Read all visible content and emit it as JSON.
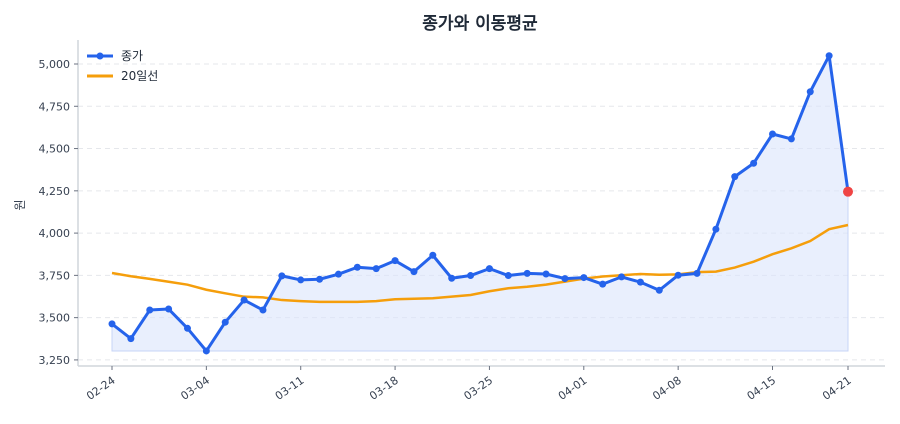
{
  "chart_data": {
    "type": "line",
    "title": "종가와 이동평균",
    "xlabel": "",
    "ylabel": "원",
    "ylim": [
      3214,
      5142
    ],
    "yticks": [
      3250,
      3500,
      3750,
      4000,
      4250,
      4500,
      4750,
      5000
    ],
    "ytick_labels": [
      "3,250",
      "3,500",
      "3,750",
      "4,000",
      "4,250",
      "4,500",
      "4,750",
      "5,000"
    ],
    "grid": true,
    "legend_position": "top-left",
    "x": [
      "02-24",
      "02-25",
      "02-26",
      "02-27",
      "02-28",
      "03-04",
      "03-05",
      "03-06",
      "03-07",
      "03-10",
      "03-11",
      "03-12",
      "03-13",
      "03-14",
      "03-17",
      "03-18",
      "03-19",
      "03-20",
      "03-21",
      "03-24",
      "03-25",
      "03-26",
      "03-27",
      "03-28",
      "03-31",
      "04-01",
      "04-02",
      "04-03",
      "04-04",
      "04-07",
      "04-08",
      "04-09",
      "04-10",
      "04-11",
      "04-14",
      "04-15",
      "04-16",
      "04-17",
      "04-18",
      "04-21"
    ],
    "xtick_labels": [
      "02-24",
      "03-04",
      "03-11",
      "03-18",
      "03-25",
      "04-01",
      "04-08",
      "04-15",
      "04-21"
    ],
    "series": [
      {
        "name": "종가",
        "color": "#2563eb",
        "values": [
          3463,
          3376,
          3545,
          3551,
          3437,
          3303,
          3473,
          3604,
          3545,
          3747,
          3723,
          3727,
          3757,
          3798,
          3790,
          3837,
          3772,
          3869,
          3733,
          3749,
          3790,
          3749,
          3762,
          3758,
          3731,
          3737,
          3698,
          3741,
          3710,
          3662,
          3751,
          3762,
          4023,
          4334,
          4413,
          4586,
          4557,
          4836,
          5049,
          4245
        ]
      },
      {
        "name": "20일선",
        "color": "#f59e0b",
        "values": [
          3764,
          3745,
          3729,
          3712,
          3695,
          3665,
          3644,
          3624,
          3620,
          3604,
          3598,
          3593,
          3593,
          3593,
          3598,
          3609,
          3612,
          3615,
          3624,
          3634,
          3656,
          3674,
          3683,
          3695,
          3713,
          3731,
          3743,
          3751,
          3758,
          3754,
          3756,
          3769,
          3772,
          3796,
          3831,
          3875,
          3910,
          3953,
          4023,
          4048
        ]
      }
    ],
    "last_point_color": "#ef4444",
    "fill_color": "#dbe4fb"
  }
}
